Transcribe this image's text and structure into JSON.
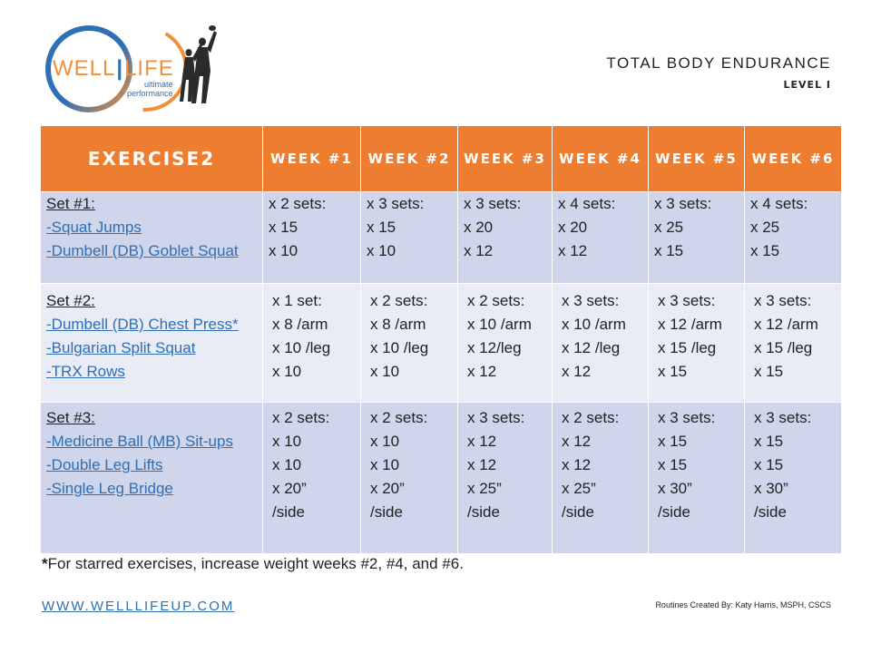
{
  "logo": {
    "word_left": "WELL",
    "word_right": "LIFE",
    "subtitle_line1": "ultimate",
    "subtitle_line2": "performance"
  },
  "header": {
    "title": "TOTAL BODY ENDURANCE",
    "level": "LEVEL I"
  },
  "table": {
    "exercise_header": "EXERCISE2",
    "weeks": [
      "WEEK #1",
      "WEEK #2",
      "WEEK #3",
      "WEEK #4",
      "WEEK #5",
      "WEEK #6"
    ],
    "rows": [
      {
        "set_label": "Set #1:",
        "exercises": [
          "-Squat Jumps",
          "-Dumbell (DB) Goblet Squat"
        ],
        "weeks": [
          [
            "x 2 sets:",
            "x 15",
            "x 10"
          ],
          [
            "x 3 sets:",
            "x 15",
            "x 10"
          ],
          [
            "x 3 sets:",
            "x 20",
            "x 12"
          ],
          [
            "x 4 sets:",
            "x 20",
            "x 12"
          ],
          [
            "x 3 sets:",
            "x 25",
            "x 15"
          ],
          [
            "x 4 sets:",
            "x 25",
            "x 15"
          ]
        ]
      },
      {
        "set_label": "Set #2:",
        "exercises": [
          "-Dumbell (DB) Chest Press*",
          "-Bulgarian Split Squat",
          "-TRX Rows"
        ],
        "weeks": [
          [
            "x 1 set:",
            "x 8 /arm",
            "x 10 /leg",
            "x 10"
          ],
          [
            "x 2 sets:",
            "x 8 /arm",
            "x 10 /leg",
            "x 10"
          ],
          [
            "x 2 sets:",
            "x 10 /arm",
            "x 12/leg",
            "x 12"
          ],
          [
            "x 3 sets:",
            "x 10 /arm",
            "x 12 /leg",
            "x 12"
          ],
          [
            "x 3 sets:",
            "x 12 /arm",
            "x 15 /leg",
            "x 15"
          ],
          [
            "x 3 sets:",
            "x 12 /arm",
            "x 15 /leg",
            "x 15"
          ]
        ]
      },
      {
        "set_label": "Set #3:",
        "exercises": [
          "-Medicine Ball (MB) Sit-ups",
          "-Double Leg Lifts",
          "-Single Leg Bridge"
        ],
        "weeks": [
          [
            "x 2 sets:",
            "x 10",
            "x 10",
            "x 20”",
            "/side"
          ],
          [
            "x 2 sets:",
            "x 10",
            "x 10",
            "x 20”",
            "/side"
          ],
          [
            "x 3 sets:",
            "x 12",
            "x 12",
            "x 25”",
            "/side"
          ],
          [
            "x 2 sets:",
            "x 12",
            "x 12",
            "x 25”",
            "/side"
          ],
          [
            "x 3 sets:",
            "x 15",
            "x 15",
            "x 30”",
            "/side"
          ],
          [
            "x 3 sets:",
            "x 15",
            "x 15",
            "x 30”",
            "/side"
          ]
        ]
      }
    ]
  },
  "footnote": {
    "star": "*",
    "text": "For starred exercises, increase weight weeks #2, #4, and #6."
  },
  "footer": {
    "website": "WWW.WELLLIFEUP.COM",
    "credit": "Routines Created By: Katy Harris, MSPH, CSCS"
  },
  "colors": {
    "header_orange": "#ed7d31",
    "row_dark": "#cfd5ea",
    "row_light": "#e9ebf5",
    "link_blue": "#2e6fb5"
  }
}
